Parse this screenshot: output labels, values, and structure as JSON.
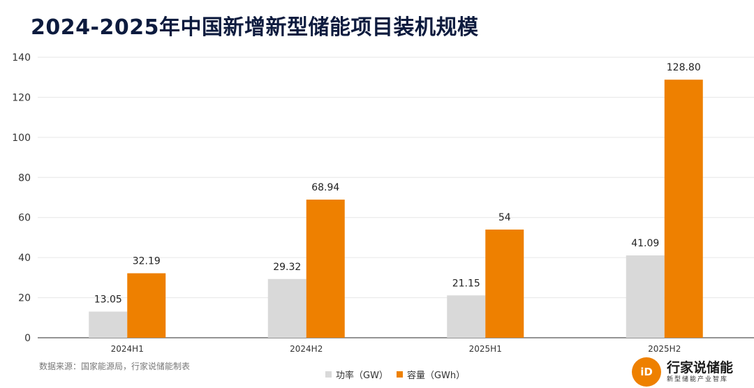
{
  "header": {
    "title": "2024-2025年中国新增新型储能项目装机规模"
  },
  "source_note": "数据来源：国家能源局，行家说储能制表",
  "brand": {
    "mark": "iD",
    "name": "行家说储能",
    "tagline": "新型储能产业智库"
  },
  "colors": {
    "power": "#d9d9d9",
    "capacity": "#ee8000",
    "title": "#0d1b3e"
  },
  "chart_data": {
    "type": "bar",
    "title": "2024-2025年中国新增新型储能项目装机规模",
    "categories": [
      "2024H1",
      "2024H2",
      "2025H1",
      "2025H2"
    ],
    "series": [
      {
        "name": "功率（GW）",
        "values": [
          13.05,
          29.32,
          21.15,
          41.09
        ],
        "labels": [
          "13.05",
          "29.32",
          "21.15",
          "41.09"
        ]
      },
      {
        "name": "容量（GWh）",
        "values": [
          32.19,
          68.94,
          54,
          128.8
        ],
        "labels": [
          "32.19",
          "68.94",
          "54",
          "128.80"
        ]
      }
    ],
    "ylim": [
      0,
      140
    ],
    "yticks": [
      0,
      20,
      40,
      60,
      80,
      100,
      120,
      140
    ],
    "grid": true,
    "legend": "bottom-center",
    "xlabel": "",
    "ylabel": ""
  }
}
